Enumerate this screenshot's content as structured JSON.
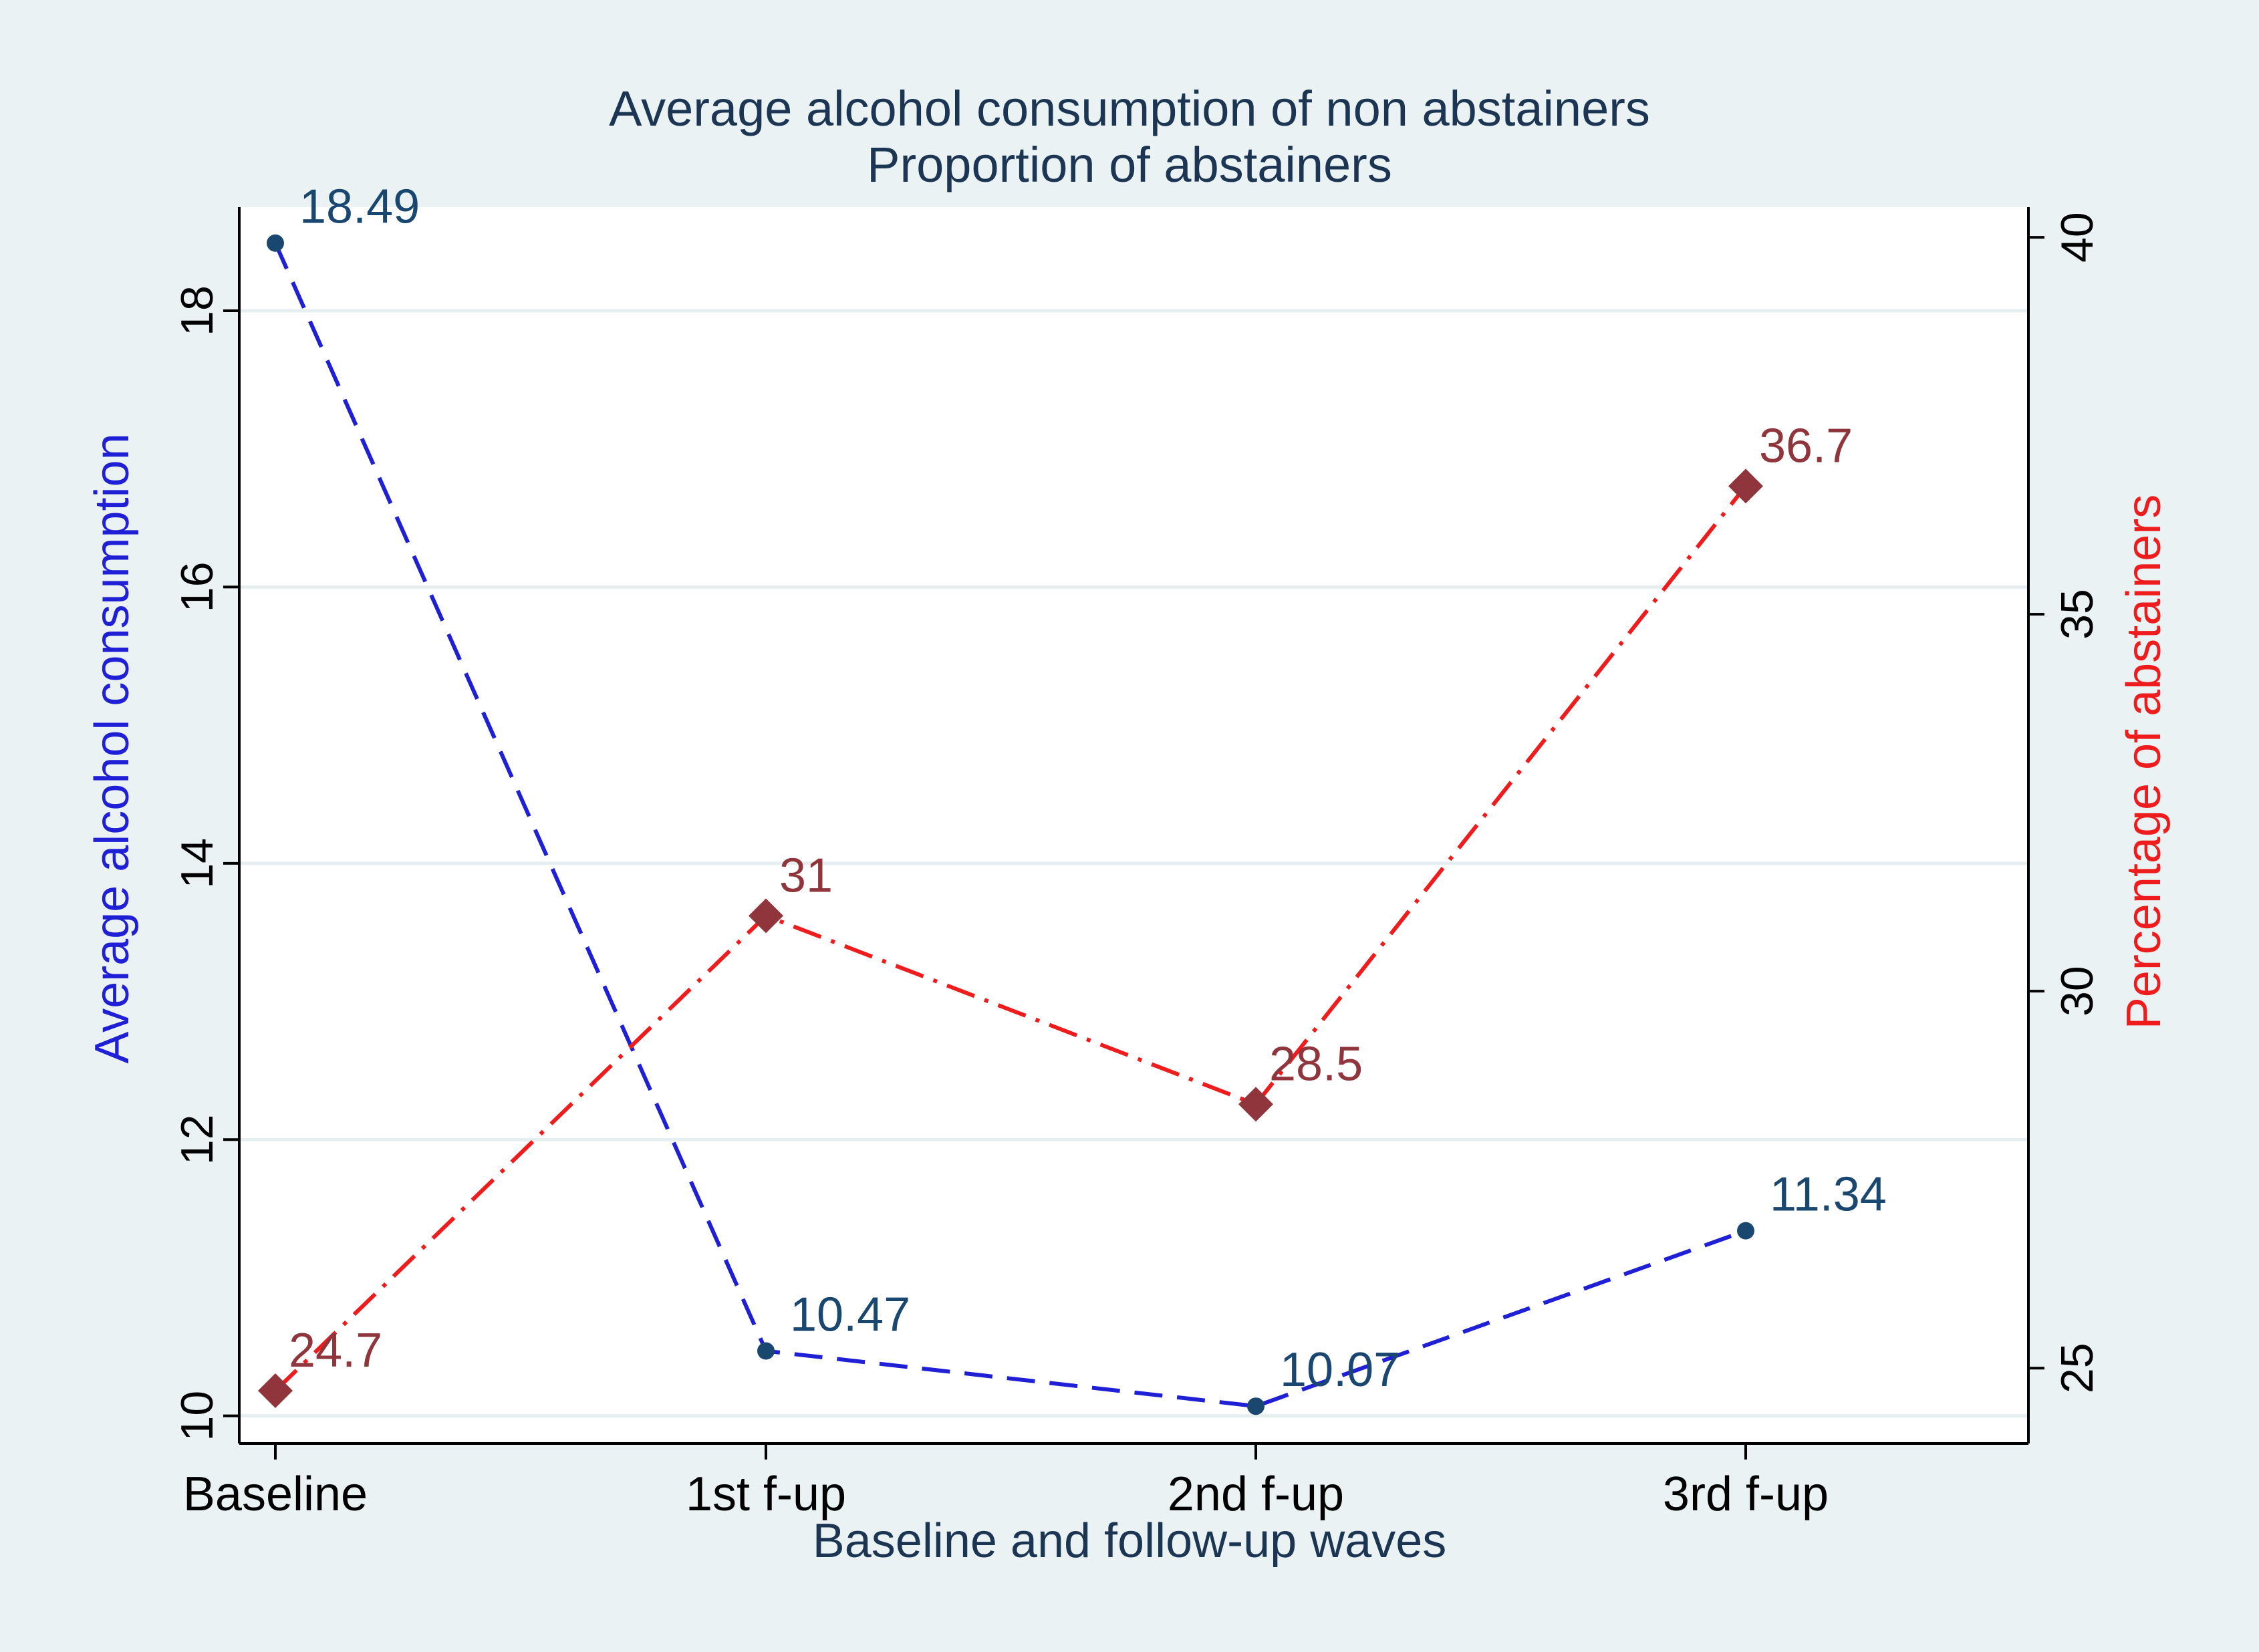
{
  "colors": {
    "outer_background": "#eaf2f3",
    "plot_background": "#ffffff",
    "grid": "#e6eef0",
    "axis": "#000000",
    "title_text": "#1b3553",
    "series1_line": "#1f1fd6",
    "series1_marker": "#1a476f",
    "series1_label": "#1a476f",
    "series2_line": "#ee1c1c",
    "series2_marker": "#90353b",
    "series2_label": "#90353b",
    "ylabel_left": "#1f1fd6",
    "ylabel_right": "#ee1c1c"
  },
  "chart_data": {
    "type": "line",
    "title": "Average alcohol consumption of non abstainers",
    "subtitle": "Proportion of abstainers",
    "xlabel": "Baseline and follow-up waves",
    "ylabel_left": "Average alcohol consumption",
    "ylabel_right": "Percentage of abstainers",
    "categories": [
      "Baseline",
      "1st f-up",
      "2nd f-up",
      "3rd f-up"
    ],
    "y_left": {
      "range": [
        9.8,
        18.75
      ],
      "ticks": [
        10,
        12,
        14,
        16,
        18
      ],
      "tick_labels": [
        "10",
        "12",
        "14",
        "16",
        "18"
      ],
      "grid": true
    },
    "y_right": {
      "range": [
        24.0,
        40.4
      ],
      "ticks": [
        25,
        30,
        35,
        40
      ],
      "tick_labels": [
        "25",
        "30",
        "35",
        "40"
      ]
    },
    "series": [
      {
        "name": "Average alcohol consumption",
        "axis": "left",
        "style": "dashed",
        "marker": "circle",
        "values": [
          18.49,
          10.47,
          10.07,
          11.34
        ],
        "labels": [
          "18.49",
          "10.47",
          "10.07",
          "11.34"
        ]
      },
      {
        "name": "Percentage of abstainers",
        "axis": "right",
        "style": "dash-dot",
        "marker": "diamond",
        "values": [
          24.7,
          31,
          28.5,
          36.7
        ],
        "labels": [
          "24.7",
          "31",
          "28.5",
          "36.7"
        ]
      }
    ]
  }
}
